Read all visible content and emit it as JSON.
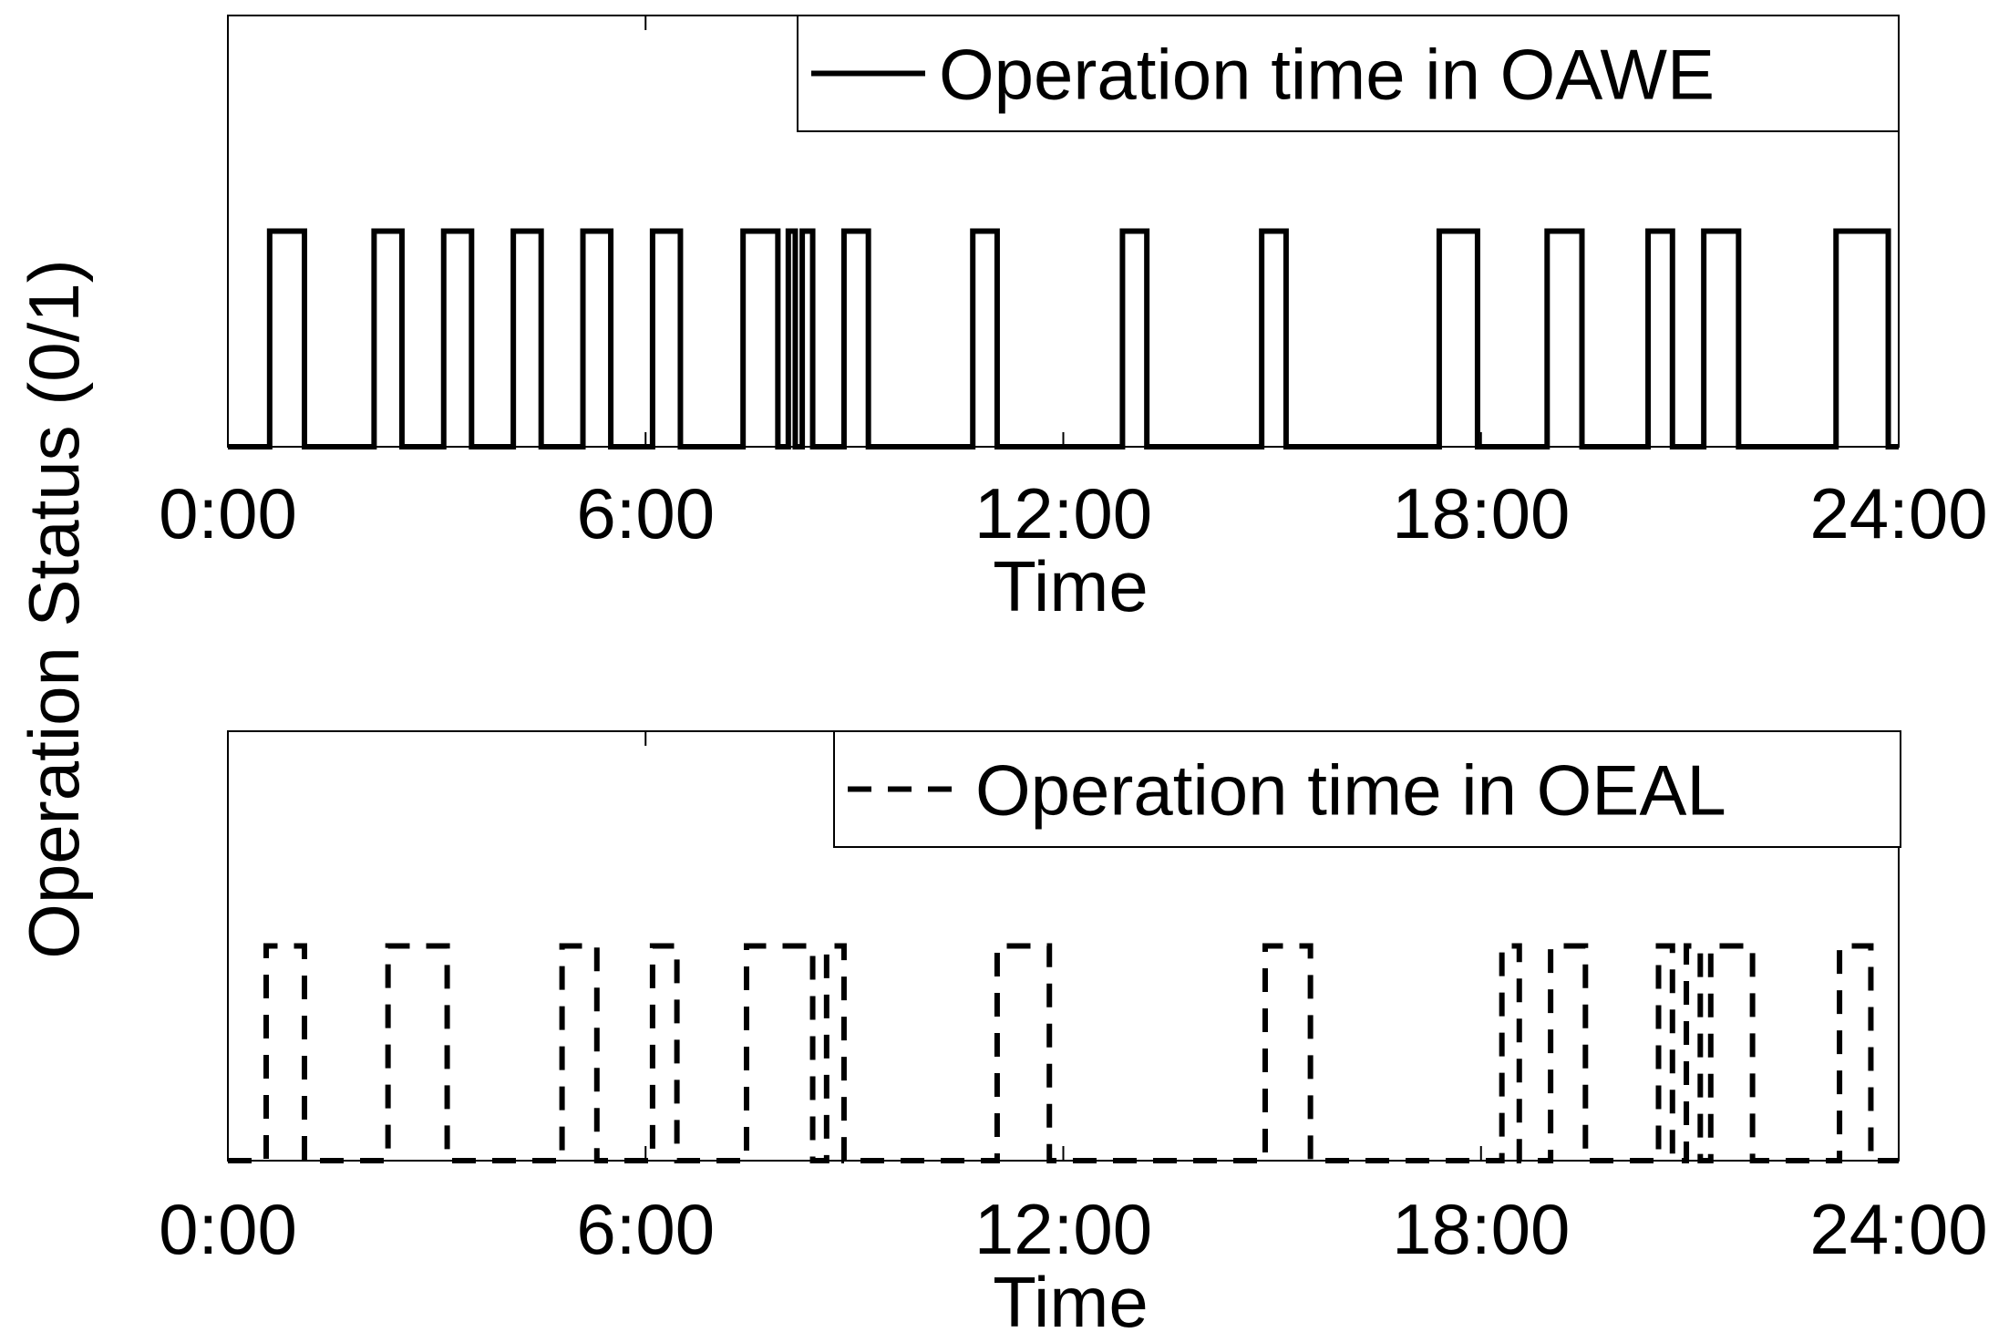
{
  "ylabel": "Operation Status (0/1)",
  "chart_data": [
    {
      "type": "line",
      "xlabel": "Time",
      "ylabel": "Operation Status (0/1)",
      "x_ticks": [
        "0:00",
        "6:00",
        "12:00",
        "18:00",
        "24:00"
      ],
      "xlim": [
        0,
        24
      ],
      "ylim": [
        0,
        2
      ],
      "legend": "top-right",
      "series": [
        {
          "name": "Operation time in OAWE",
          "style": "solid",
          "color": "#000000",
          "on_intervals": [
            [
              0.6,
              1.1
            ],
            [
              2.1,
              2.5
            ],
            [
              3.1,
              3.5
            ],
            [
              4.1,
              4.5
            ],
            [
              5.1,
              5.5
            ],
            [
              6.1,
              6.5
            ],
            [
              7.4,
              7.9
            ],
            [
              8.05,
              8.15
            ],
            [
              8.25,
              8.4
            ],
            [
              8.85,
              9.2
            ],
            [
              10.7,
              11.05
            ],
            [
              12.85,
              13.2
            ],
            [
              14.85,
              15.2
            ],
            [
              17.4,
              17.95
            ],
            [
              18.95,
              19.45
            ],
            [
              20.4,
              20.75
            ],
            [
              21.2,
              21.7
            ],
            [
              23.1,
              23.85
            ]
          ]
        }
      ]
    },
    {
      "type": "line",
      "xlabel": "Time",
      "ylabel": "Operation Status (0/1)",
      "x_ticks": [
        "0:00",
        "6:00",
        "12:00",
        "18:00",
        "24:00"
      ],
      "xlim": [
        0,
        24
      ],
      "ylim": [
        0,
        2
      ],
      "legend": "top-right",
      "series": [
        {
          "name": "Operation time in OEAL",
          "style": "dashed",
          "color": "#000000",
          "on_intervals": [
            [
              0.55,
              1.1
            ],
            [
              2.3,
              3.15
            ],
            [
              4.8,
              5.3
            ],
            [
              6.1,
              6.45
            ],
            [
              7.45,
              8.4
            ],
            [
              8.6,
              8.85
            ],
            [
              11.05,
              11.8
            ],
            [
              14.9,
              15.55
            ],
            [
              18.3,
              18.55
            ],
            [
              19.0,
              19.5
            ],
            [
              20.55,
              20.75
            ],
            [
              20.95,
              21.15
            ],
            [
              21.3,
              21.9
            ],
            [
              23.15,
              23.6
            ]
          ]
        }
      ]
    }
  ]
}
